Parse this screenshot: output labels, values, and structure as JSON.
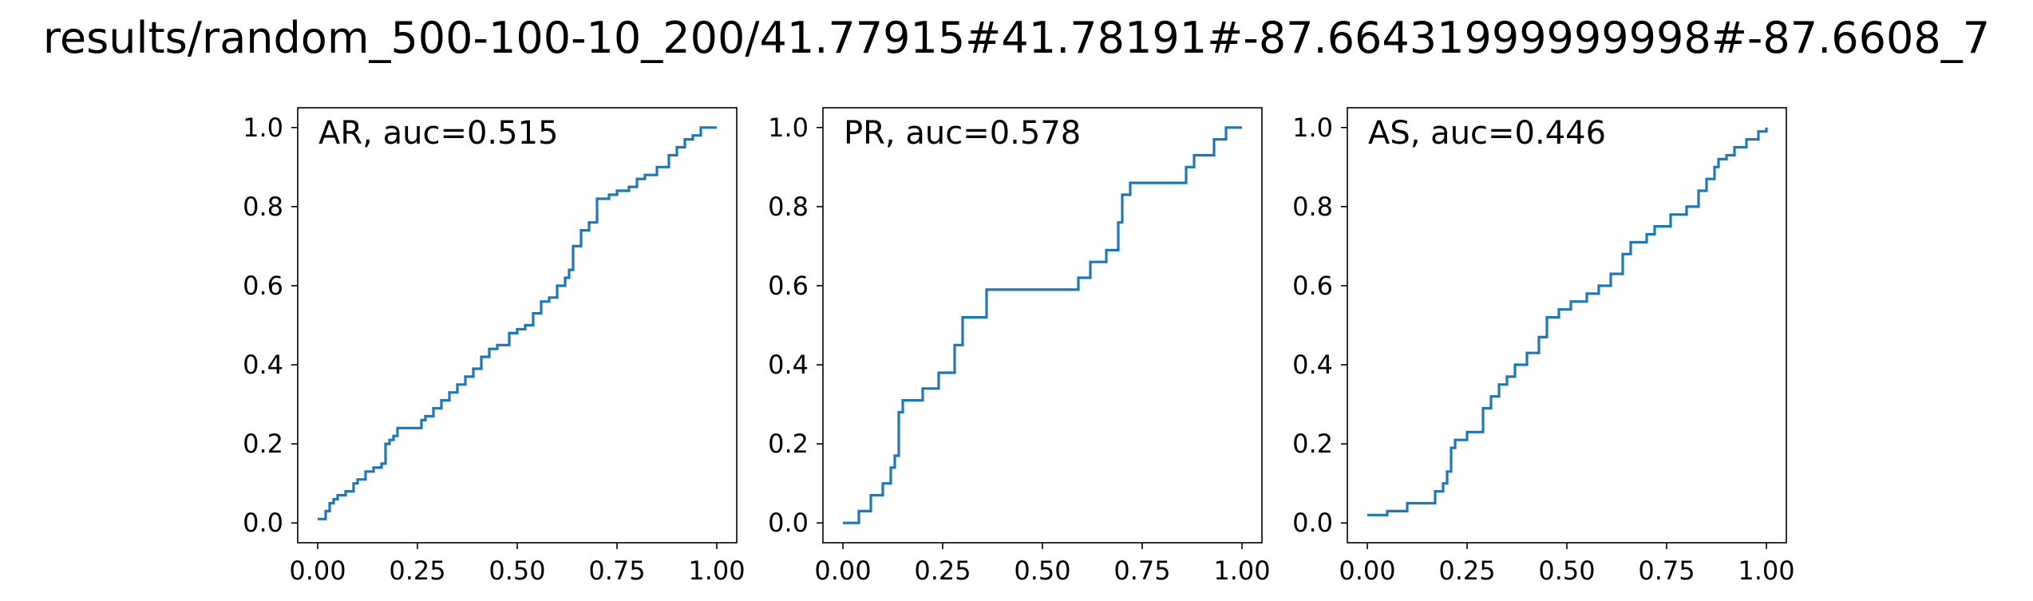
{
  "figure": {
    "title": "results/random_500-100-10_200/41.77915#41.78191#-87.66431999999998#-87.6608_7"
  },
  "style": {
    "line_color": "#1f77b4",
    "axis_color": "#000000"
  },
  "chart_data": [
    {
      "type": "line",
      "drawstyle": "steps-post",
      "label": "AR, auc=0.515",
      "xlim": [
        -0.05,
        1.05
      ],
      "ylim": [
        -0.05,
        1.05
      ],
      "xticks": [
        "0.00",
        "0.25",
        "0.50",
        "0.75",
        "1.00"
      ],
      "yticks": [
        "0.0",
        "0.2",
        "0.4",
        "0.6",
        "0.8",
        "1.0"
      ],
      "grid": false,
      "series": [
        {
          "x": [
            0.0,
            0.02,
            0.03,
            0.04,
            0.05,
            0.07,
            0.09,
            0.1,
            0.12,
            0.14,
            0.16,
            0.17,
            0.18,
            0.19,
            0.2,
            0.24,
            0.26,
            0.27,
            0.29,
            0.31,
            0.33,
            0.35,
            0.37,
            0.39,
            0.41,
            0.43,
            0.45,
            0.48,
            0.5,
            0.52,
            0.54,
            0.56,
            0.58,
            0.6,
            0.62,
            0.63,
            0.64,
            0.66,
            0.68,
            0.7,
            0.73,
            0.75,
            0.78,
            0.8,
            0.82,
            0.85,
            0.88,
            0.9,
            0.92,
            0.94,
            0.96,
            1.0
          ],
          "y": [
            0.01,
            0.03,
            0.05,
            0.06,
            0.07,
            0.08,
            0.1,
            0.11,
            0.13,
            0.14,
            0.15,
            0.2,
            0.21,
            0.22,
            0.24,
            0.24,
            0.26,
            0.27,
            0.29,
            0.31,
            0.33,
            0.35,
            0.37,
            0.39,
            0.42,
            0.44,
            0.45,
            0.48,
            0.49,
            0.5,
            0.53,
            0.56,
            0.57,
            0.6,
            0.62,
            0.64,
            0.7,
            0.74,
            0.76,
            0.82,
            0.83,
            0.84,
            0.85,
            0.87,
            0.88,
            0.9,
            0.93,
            0.95,
            0.97,
            0.98,
            1.0,
            1.0
          ]
        }
      ]
    },
    {
      "type": "line",
      "drawstyle": "steps-post",
      "label": "PR, auc=0.578",
      "xlim": [
        -0.05,
        1.05
      ],
      "ylim": [
        -0.05,
        1.05
      ],
      "xticks": [
        "0.00",
        "0.25",
        "0.50",
        "0.75",
        "1.00"
      ],
      "yticks": [
        "0.0",
        "0.2",
        "0.4",
        "0.6",
        "0.8",
        "1.0"
      ],
      "grid": false,
      "series": [
        {
          "x": [
            0.0,
            0.04,
            0.07,
            0.1,
            0.12,
            0.13,
            0.14,
            0.15,
            0.2,
            0.24,
            0.28,
            0.3,
            0.36,
            0.59,
            0.62,
            0.66,
            0.69,
            0.7,
            0.72,
            0.86,
            0.88,
            0.93,
            0.96,
            1.0
          ],
          "y": [
            0.0,
            0.03,
            0.07,
            0.1,
            0.14,
            0.17,
            0.28,
            0.31,
            0.34,
            0.38,
            0.45,
            0.52,
            0.59,
            0.62,
            0.66,
            0.69,
            0.76,
            0.83,
            0.86,
            0.9,
            0.93,
            0.97,
            1.0,
            1.0
          ]
        }
      ]
    },
    {
      "type": "line",
      "drawstyle": "steps-post",
      "label": "AS, auc=0.446",
      "xlim": [
        -0.05,
        1.05
      ],
      "ylim": [
        -0.05,
        1.05
      ],
      "xticks": [
        "0.00",
        "0.25",
        "0.50",
        "0.75",
        "1.00"
      ],
      "yticks": [
        "0.0",
        "0.2",
        "0.4",
        "0.6",
        "0.8",
        "1.0"
      ],
      "grid": false,
      "series": [
        {
          "x": [
            0.0,
            0.05,
            0.1,
            0.17,
            0.19,
            0.2,
            0.21,
            0.22,
            0.25,
            0.29,
            0.31,
            0.33,
            0.35,
            0.37,
            0.4,
            0.43,
            0.45,
            0.48,
            0.51,
            0.55,
            0.58,
            0.61,
            0.64,
            0.66,
            0.7,
            0.72,
            0.76,
            0.8,
            0.83,
            0.85,
            0.87,
            0.88,
            0.9,
            0.92,
            0.95,
            0.98,
            1.0
          ],
          "y": [
            0.02,
            0.03,
            0.05,
            0.08,
            0.1,
            0.13,
            0.19,
            0.21,
            0.23,
            0.29,
            0.32,
            0.35,
            0.37,
            0.4,
            0.43,
            0.47,
            0.52,
            0.54,
            0.56,
            0.58,
            0.6,
            0.63,
            0.68,
            0.71,
            0.73,
            0.75,
            0.78,
            0.8,
            0.84,
            0.87,
            0.9,
            0.92,
            0.93,
            0.95,
            0.97,
            0.99,
            1.0
          ]
        }
      ]
    }
  ]
}
